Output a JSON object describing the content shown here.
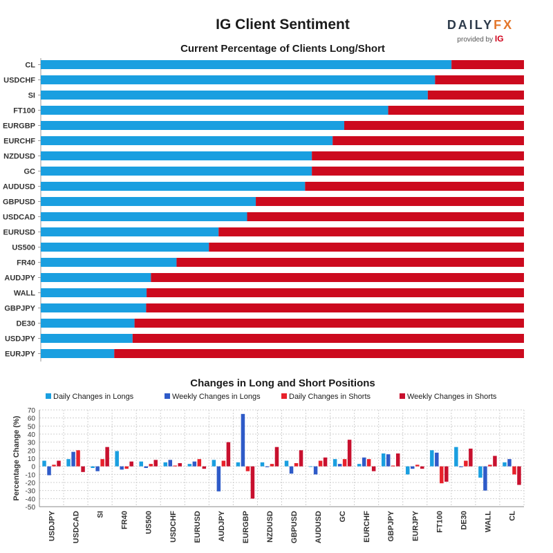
{
  "header": {
    "title": "IG Client Sentiment",
    "logo_main": "DAILY",
    "logo_fx": "FX",
    "logo_sub": "provided by",
    "logo_ig": "IG"
  },
  "colors": {
    "long": "#1a9fe0",
    "short": "#cc0a1e",
    "weekly_long": "#2f5bc8",
    "daily_short": "#e8212b",
    "weekly_short": "#c8102e"
  },
  "chart_data": [
    {
      "type": "bar",
      "orientation": "horizontal-stacked",
      "title": "Current Percentage of Clients Long/Short",
      "categories": [
        "CL",
        "USDCHF",
        "SI",
        "FT100",
        "EURGBP",
        "EURCHF",
        "NZDUSD",
        "GC",
        "AUDUSD",
        "GBPUSD",
        "USDCAD",
        "EURUSD",
        "US500",
        "FR40",
        "AUDJPY",
        "WALL",
        "GBPJPY",
        "DE30",
        "USDJPY",
        "EURJPY"
      ],
      "series": [
        {
          "values": [
            85,
            81.6,
            80.1,
            71.9,
            62.8,
            60.4,
            56.1,
            56.1,
            54.7,
            44.5,
            42.7,
            36.8,
            34.8,
            28.1,
            22.8,
            21.9,
            21.8,
            19.4,
            19.0,
            15.2
          ]
        },
        {
          "values": [
            15,
            18.4,
            19.9,
            28.1,
            37.2,
            39.6,
            43.9,
            43.9,
            45.3,
            55.5,
            57.3,
            63.2,
            65.2,
            71.9,
            77.2,
            78.1,
            78.2,
            80.6,
            81.0,
            84.8
          ]
        }
      ],
      "xlim": [
        0,
        100
      ]
    },
    {
      "type": "bar",
      "title": "Changes in Long and Short Positions",
      "ylabel": "Percentage Change (%)",
      "ylim": [
        -50,
        70
      ],
      "yticks": [
        -50,
        -40,
        -30,
        -20,
        -10,
        0,
        10,
        20,
        30,
        40,
        50,
        60,
        70
      ],
      "grid": true,
      "legend": "top",
      "categories": [
        "USDJPY",
        "USDCAD",
        "SI",
        "FR40",
        "US500",
        "USDCHF",
        "EURUSD",
        "AUDJPY",
        "EURGBP",
        "NZDUSD",
        "GBPUSD",
        "AUDUSD",
        "GC",
        "EURCHF",
        "GBPJPY",
        "EURJPY",
        "FT100",
        "DE30",
        "WALL",
        "CL"
      ],
      "series": [
        {
          "name": "Daily Changes in Longs",
          "values": [
            7,
            9,
            -2,
            19,
            6,
            5,
            3,
            8,
            5,
            5,
            7,
            0,
            9,
            3,
            16,
            -10,
            20,
            24,
            -14,
            5
          ]
        },
        {
          "name": "Weekly Changes in Longs",
          "values": [
            -11,
            18,
            -6,
            -4,
            -2,
            8,
            6,
            -31,
            65,
            -1,
            -9,
            -10,
            3,
            11,
            15,
            -3,
            17,
            -1,
            -30,
            9
          ]
        },
        {
          "name": "Daily Changes in Shorts",
          "values": [
            2,
            20,
            9,
            -3,
            3,
            1,
            9,
            7,
            -6,
            3,
            4,
            7,
            9,
            9,
            1,
            2,
            -21,
            7,
            2,
            -10
          ]
        },
        {
          "name": "Weekly Changes in Shorts",
          "values": [
            7,
            -7,
            24,
            6,
            8,
            4,
            -3,
            30,
            -40,
            24,
            20,
            11,
            33,
            -6,
            16,
            -3,
            -19,
            22,
            13,
            -23
          ]
        }
      ]
    }
  ]
}
